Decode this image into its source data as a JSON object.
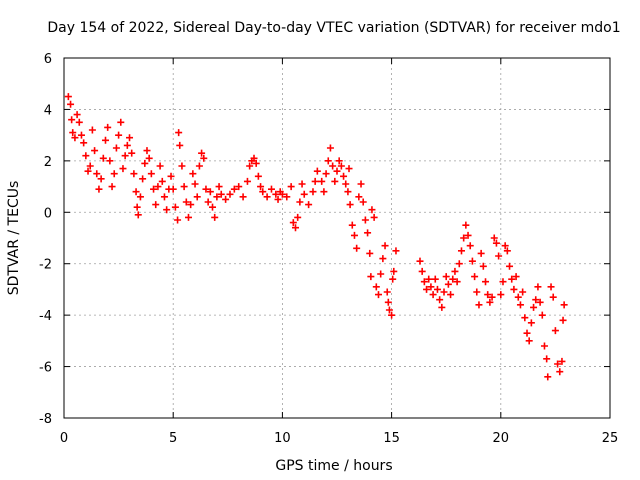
{
  "chart_data": {
    "type": "scatter",
    "title": "Day 154 of 2022, Sidereal Day-to-day VTEC variation (SDTVAR) for receiver mdo1",
    "xlabel": "GPS time / hours",
    "ylabel": "SDTVAR / TECUs",
    "xlim": [
      0,
      25
    ],
    "ylim": [
      -8,
      6
    ],
    "xticks": [
      0,
      5,
      10,
      15,
      20,
      25
    ],
    "yticks": [
      -8,
      -6,
      -4,
      -2,
      0,
      2,
      4,
      6
    ],
    "xtick_labels": [
      "0",
      "5",
      "10",
      "15",
      "20",
      "25"
    ],
    "ytick_labels": [
      "-8",
      "-6",
      "-4",
      "-2",
      "0",
      "2",
      "4",
      "6"
    ],
    "grid": true,
    "marker": "+",
    "color": "#ff0000",
    "series": [
      {
        "name": "SDTVAR",
        "points": [
          [
            0.2,
            4.5
          ],
          [
            0.3,
            4.2
          ],
          [
            0.35,
            3.6
          ],
          [
            0.4,
            3.1
          ],
          [
            0.5,
            2.9
          ],
          [
            0.6,
            3.8
          ],
          [
            0.7,
            3.5
          ],
          [
            0.8,
            3.0
          ],
          [
            0.9,
            2.7
          ],
          [
            1.0,
            2.2
          ],
          [
            1.1,
            1.6
          ],
          [
            1.2,
            1.8
          ],
          [
            1.3,
            3.2
          ],
          [
            1.4,
            2.4
          ],
          [
            1.5,
            1.5
          ],
          [
            1.6,
            0.9
          ],
          [
            1.7,
            1.3
          ],
          [
            1.8,
            2.1
          ],
          [
            1.9,
            2.8
          ],
          [
            2.0,
            3.3
          ],
          [
            2.1,
            2.0
          ],
          [
            2.2,
            1.0
          ],
          [
            2.3,
            1.5
          ],
          [
            2.4,
            2.5
          ],
          [
            2.5,
            3.0
          ],
          [
            2.6,
            3.5
          ],
          [
            2.7,
            1.7
          ],
          [
            2.8,
            2.2
          ],
          [
            2.9,
            2.6
          ],
          [
            3.0,
            2.9
          ],
          [
            3.1,
            2.3
          ],
          [
            3.2,
            1.5
          ],
          [
            3.3,
            0.8
          ],
          [
            3.35,
            0.2
          ],
          [
            3.4,
            -0.1
          ],
          [
            3.5,
            0.6
          ],
          [
            3.6,
            1.3
          ],
          [
            3.7,
            1.9
          ],
          [
            3.8,
            2.4
          ],
          [
            3.9,
            2.1
          ],
          [
            4.0,
            1.5
          ],
          [
            4.1,
            0.9
          ],
          [
            4.2,
            0.3
          ],
          [
            4.3,
            1.0
          ],
          [
            4.4,
            1.8
          ],
          [
            4.5,
            1.2
          ],
          [
            4.6,
            0.6
          ],
          [
            4.7,
            0.1
          ],
          [
            4.8,
            0.9
          ],
          [
            4.9,
            1.4
          ],
          [
            5.0,
            0.9
          ],
          [
            5.1,
            0.2
          ],
          [
            5.2,
            -0.3
          ],
          [
            5.25,
            3.1
          ],
          [
            5.3,
            2.6
          ],
          [
            5.4,
            1.8
          ],
          [
            5.5,
            1.0
          ],
          [
            5.6,
            0.4
          ],
          [
            5.7,
            -0.2
          ],
          [
            5.8,
            0.3
          ],
          [
            5.9,
            1.5
          ],
          [
            6.0,
            1.1
          ],
          [
            6.1,
            0.6
          ],
          [
            6.2,
            1.8
          ],
          [
            6.3,
            2.3
          ],
          [
            6.4,
            2.1
          ],
          [
            6.5,
            0.9
          ],
          [
            6.6,
            0.4
          ],
          [
            6.7,
            0.8
          ],
          [
            6.8,
            0.2
          ],
          [
            6.9,
            -0.2
          ],
          [
            7.0,
            0.6
          ],
          [
            7.1,
            1.0
          ],
          [
            7.2,
            0.7
          ],
          [
            7.4,
            0.5
          ],
          [
            7.6,
            0.7
          ],
          [
            7.8,
            0.9
          ],
          [
            8.0,
            1.0
          ],
          [
            8.2,
            0.6
          ],
          [
            8.4,
            1.2
          ],
          [
            8.5,
            1.8
          ],
          [
            8.6,
            2.0
          ],
          [
            8.7,
            2.1
          ],
          [
            8.8,
            1.9
          ],
          [
            8.9,
            1.4
          ],
          [
            9.0,
            1.0
          ],
          [
            9.1,
            0.8
          ],
          [
            9.3,
            0.6
          ],
          [
            9.5,
            0.9
          ],
          [
            9.7,
            0.7
          ],
          [
            9.8,
            0.5
          ],
          [
            9.9,
            0.8
          ],
          [
            10.0,
            0.7
          ],
          [
            10.2,
            0.6
          ],
          [
            10.4,
            1.0
          ],
          [
            10.5,
            -0.4
          ],
          [
            10.6,
            -0.6
          ],
          [
            10.7,
            -0.2
          ],
          [
            10.8,
            0.4
          ],
          [
            10.9,
            1.1
          ],
          [
            11.0,
            0.7
          ],
          [
            11.2,
            0.3
          ],
          [
            11.4,
            0.8
          ],
          [
            11.5,
            1.2
          ],
          [
            11.6,
            1.6
          ],
          [
            11.8,
            1.2
          ],
          [
            11.9,
            0.8
          ],
          [
            12.0,
            1.5
          ],
          [
            12.1,
            2.0
          ],
          [
            12.2,
            2.5
          ],
          [
            12.3,
            1.8
          ],
          [
            12.4,
            1.2
          ],
          [
            12.5,
            1.6
          ],
          [
            12.6,
            2.0
          ],
          [
            12.7,
            1.8
          ],
          [
            12.8,
            1.4
          ],
          [
            12.9,
            1.1
          ],
          [
            13.0,
            0.8
          ],
          [
            13.05,
            1.7
          ],
          [
            13.1,
            0.3
          ],
          [
            13.2,
            -0.5
          ],
          [
            13.3,
            -0.9
          ],
          [
            13.4,
            -1.4
          ],
          [
            13.5,
            0.6
          ],
          [
            13.6,
            1.1
          ],
          [
            13.7,
            0.4
          ],
          [
            13.8,
            -0.3
          ],
          [
            13.9,
            -0.8
          ],
          [
            14.0,
            -1.6
          ],
          [
            14.05,
            -2.5
          ],
          [
            14.1,
            0.1
          ],
          [
            14.2,
            -0.2
          ],
          [
            14.3,
            -2.9
          ],
          [
            14.4,
            -3.2
          ],
          [
            14.5,
            -2.4
          ],
          [
            14.6,
            -1.8
          ],
          [
            14.7,
            -1.3
          ],
          [
            14.8,
            -3.1
          ],
          [
            14.85,
            -3.5
          ],
          [
            14.9,
            -3.8
          ],
          [
            15.0,
            -4.0
          ],
          [
            15.05,
            -2.6
          ],
          [
            15.1,
            -2.3
          ],
          [
            15.2,
            -1.5
          ],
          [
            16.3,
            -1.9
          ],
          [
            16.4,
            -2.3
          ],
          [
            16.5,
            -2.7
          ],
          [
            16.6,
            -3.0
          ],
          [
            16.7,
            -2.6
          ],
          [
            16.8,
            -2.9
          ],
          [
            16.9,
            -3.2
          ],
          [
            17.0,
            -2.6
          ],
          [
            17.1,
            -3.0
          ],
          [
            17.2,
            -3.4
          ],
          [
            17.3,
            -3.7
          ],
          [
            17.4,
            -3.1
          ],
          [
            17.5,
            -2.5
          ],
          [
            17.6,
            -2.8
          ],
          [
            17.7,
            -3.2
          ],
          [
            17.8,
            -2.6
          ],
          [
            17.9,
            -2.3
          ],
          [
            18.0,
            -2.7
          ],
          [
            18.1,
            -2.0
          ],
          [
            18.2,
            -1.5
          ],
          [
            18.3,
            -1.0
          ],
          [
            18.4,
            -0.5
          ],
          [
            18.5,
            -0.9
          ],
          [
            18.6,
            -1.3
          ],
          [
            18.7,
            -1.9
          ],
          [
            18.8,
            -2.5
          ],
          [
            18.9,
            -3.1
          ],
          [
            19.0,
            -3.6
          ],
          [
            19.1,
            -1.6
          ],
          [
            19.2,
            -2.1
          ],
          [
            19.3,
            -2.7
          ],
          [
            19.4,
            -3.2
          ],
          [
            19.5,
            -3.5
          ],
          [
            19.6,
            -3.3
          ],
          [
            19.7,
            -1.0
          ],
          [
            19.8,
            -1.2
          ],
          [
            19.9,
            -1.7
          ],
          [
            20.0,
            -3.2
          ],
          [
            20.1,
            -2.7
          ],
          [
            20.2,
            -1.3
          ],
          [
            20.3,
            -1.5
          ],
          [
            20.4,
            -2.1
          ],
          [
            20.5,
            -2.6
          ],
          [
            20.6,
            -3.0
          ],
          [
            20.7,
            -2.5
          ],
          [
            20.8,
            -3.3
          ],
          [
            20.9,
            -3.6
          ],
          [
            21.0,
            -3.1
          ],
          [
            21.1,
            -4.1
          ],
          [
            21.2,
            -4.7
          ],
          [
            21.3,
            -5.0
          ],
          [
            21.4,
            -4.3
          ],
          [
            21.5,
            -3.7
          ],
          [
            21.6,
            -3.4
          ],
          [
            21.7,
            -2.9
          ],
          [
            21.8,
            -3.5
          ],
          [
            21.9,
            -4.0
          ],
          [
            22.0,
            -5.2
          ],
          [
            22.1,
            -5.7
          ],
          [
            22.15,
            -6.4
          ],
          [
            22.3,
            -2.9
          ],
          [
            22.4,
            -3.3
          ],
          [
            22.5,
            -4.6
          ],
          [
            22.6,
            -5.9
          ],
          [
            22.7,
            -6.2
          ],
          [
            22.8,
            -5.8
          ],
          [
            22.85,
            -4.2
          ],
          [
            22.9,
            -3.6
          ]
        ]
      }
    ]
  }
}
